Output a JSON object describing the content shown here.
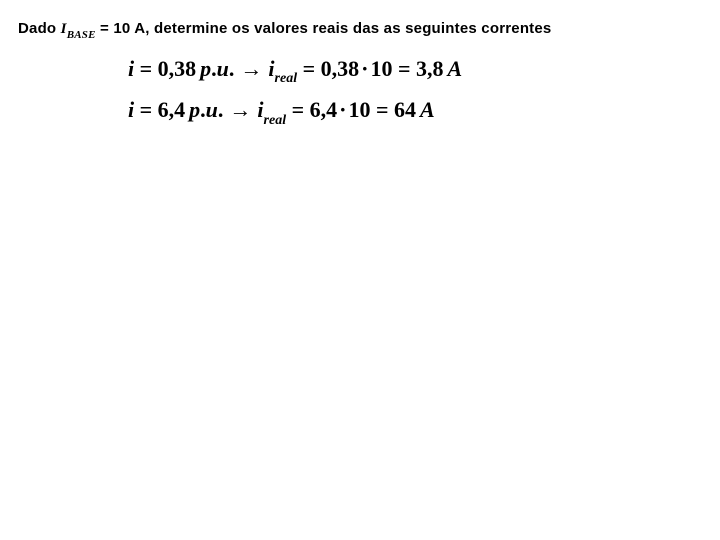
{
  "heading": {
    "prefix": "Dado ",
    "ivar": "I",
    "isub": "BASE",
    "rest": " = 10 A, determine os valores reais das as seguintes correntes"
  },
  "equations": [
    {
      "lhs_var": "i",
      "lhs_eq": " = ",
      "lhs_val": "0,38",
      "lhs_space": " ",
      "lhs_unit_p": "p",
      "lhs_unit_dot1": ".",
      "lhs_unit_u": "u",
      "lhs_unit_dot2": ".",
      "arrow": "→",
      "mid_var": "i",
      "mid_sub": "real",
      "mid_eq": " = ",
      "mid_val1": "0,38",
      "mid_mult": "·",
      "mid_val2": "10",
      "mid_eq2": " = ",
      "rhs_val": "3,8",
      "rhs_sp": " ",
      "rhs_unit": "A"
    },
    {
      "lhs_var": "i",
      "lhs_eq": " = ",
      "lhs_val": "6,4",
      "lhs_space": " ",
      "lhs_unit_p": "p",
      "lhs_unit_dot1": ".",
      "lhs_unit_u": "u",
      "lhs_unit_dot2": ".",
      "arrow": "→",
      "mid_var": "i",
      "mid_sub": "real",
      "mid_eq": " = ",
      "mid_val1": "6,4",
      "mid_mult": "·",
      "mid_val2": "10",
      "mid_eq2": " = ",
      "rhs_val": "64",
      "rhs_sp": " ",
      "rhs_unit": "A"
    }
  ]
}
